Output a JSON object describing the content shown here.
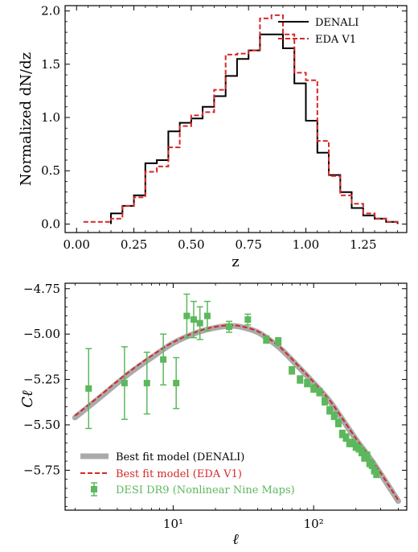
{
  "chart_data": [
    {
      "type": "line",
      "subtype": "step",
      "xlabel": "z",
      "ylabel": "Normalized dN/dz",
      "xlim": [
        -0.05,
        1.44
      ],
      "ylim": [
        -0.08,
        2.05
      ],
      "xticks": [
        0.0,
        0.25,
        0.5,
        0.75,
        1.0,
        1.25
      ],
      "xtick_labels": [
        "0.00",
        "0.25",
        "0.50",
        "0.75",
        "1.00",
        "1.25"
      ],
      "yticks": [
        0.0,
        0.5,
        1.0,
        1.5,
        2.0
      ],
      "ytick_labels": [
        "0.0",
        "0.5",
        "1.0",
        "1.5",
        "2.0"
      ],
      "grid": false,
      "legend_position": "top-right",
      "bin_edges": [
        0.15,
        0.2,
        0.25,
        0.3,
        0.35,
        0.4,
        0.45,
        0.5,
        0.55,
        0.6,
        0.65,
        0.7,
        0.75,
        0.8,
        0.85,
        0.9,
        0.95,
        1.0,
        1.05,
        1.1,
        1.15,
        1.2,
        1.25,
        1.3,
        1.35,
        1.4
      ],
      "series": [
        {
          "name": "DENALI",
          "color": "#000000",
          "style": "solid",
          "values": [
            0.1,
            0.17,
            0.27,
            0.57,
            0.6,
            0.87,
            0.95,
            0.99,
            1.1,
            1.2,
            1.39,
            1.55,
            1.63,
            1.78,
            1.78,
            1.65,
            1.32,
            0.97,
            0.67,
            0.46,
            0.3,
            0.15,
            0.08,
            0.05,
            0.02
          ]
        },
        {
          "name": "EDA V1",
          "color": "#d62728",
          "style": "dashed",
          "x_start": 0.03,
          "leading_value": 0.02,
          "values": [
            0.05,
            0.17,
            0.25,
            0.49,
            0.54,
            0.72,
            0.92,
            1.02,
            1.05,
            1.26,
            1.59,
            1.6,
            1.63,
            1.93,
            1.96,
            1.78,
            1.42,
            1.35,
            0.78,
            0.45,
            0.27,
            0.19,
            0.1,
            0.05,
            0.02
          ]
        }
      ]
    },
    {
      "type": "line",
      "xlabel": "ℓ",
      "ylabel": "Cℓ",
      "x_scale": "log",
      "xlim": [
        1.7,
        460
      ],
      "ylim": [
        -5.97,
        -4.72
      ],
      "xticks": [
        10,
        100
      ],
      "xtick_labels": [
        "10¹",
        "10²"
      ],
      "yticks": [
        -5.75,
        -5.5,
        -5.25,
        -5.0,
        -4.75
      ],
      "ytick_labels": [
        "−5.75",
        "−5.50",
        "−5.25",
        "−5.00",
        "−4.75"
      ],
      "grid": false,
      "legend_position": "bottom-left",
      "series": [
        {
          "name": "Best fit model (DENALI)",
          "color": "#aaaaaa",
          "style": "thick-solid",
          "x": [
            2,
            3,
            4,
            5,
            7,
            10,
            15,
            20,
            25,
            30,
            40,
            50,
            60,
            80,
            100,
            130,
            160,
            200,
            250,
            300,
            400
          ],
          "y": [
            -5.46,
            -5.35,
            -5.27,
            -5.21,
            -5.13,
            -5.05,
            -4.99,
            -4.965,
            -4.955,
            -4.96,
            -4.99,
            -5.04,
            -5.09,
            -5.19,
            -5.27,
            -5.37,
            -5.47,
            -5.58,
            -5.68,
            -5.77,
            -5.92
          ]
        },
        {
          "name": "Best fit model (EDA V1)",
          "color": "#d62728",
          "style": "dashed",
          "x": [
            2,
            3,
            4,
            5,
            7,
            10,
            15,
            20,
            25,
            30,
            40,
            50,
            60,
            80,
            100,
            130,
            160,
            200,
            250,
            300,
            400
          ],
          "y": [
            -5.45,
            -5.34,
            -5.26,
            -5.2,
            -5.12,
            -5.045,
            -4.985,
            -4.96,
            -4.952,
            -4.956,
            -4.985,
            -5.035,
            -5.085,
            -5.185,
            -5.265,
            -5.365,
            -5.465,
            -5.575,
            -5.675,
            -5.765,
            -5.915
          ]
        },
        {
          "name": "DESI DR9 (Nonlinear Nine Maps)",
          "color": "#5cb85c",
          "style": "errorbar-square",
          "x": [
            2.5,
            4.5,
            6.5,
            8.5,
            10.5,
            12.5,
            14,
            15.5,
            17.5,
            25,
            34,
            46,
            56,
            70,
            80,
            90,
            100,
            110,
            120,
            130,
            140,
            150,
            160,
            170,
            180,
            190,
            200,
            210,
            220,
            230,
            240,
            250,
            260,
            270,
            280
          ],
          "y": [
            -5.3,
            -5.27,
            -5.27,
            -5.14,
            -5.27,
            -4.9,
            -4.92,
            -4.94,
            -4.9,
            -4.96,
            -4.92,
            -5.03,
            -5.04,
            -5.2,
            -5.25,
            -5.27,
            -5.3,
            -5.32,
            -5.37,
            -5.42,
            -5.45,
            -5.49,
            -5.55,
            -5.57,
            -5.6,
            -5.6,
            -5.62,
            -5.63,
            -5.65,
            -5.68,
            -5.67,
            -5.71,
            -5.72,
            -5.75,
            -5.77
          ],
          "err": [
            0.22,
            0.2,
            0.17,
            0.14,
            0.14,
            0.12,
            0.1,
            0.09,
            0.08,
            0.03,
            0.03,
            0.02,
            0.02,
            0.02,
            0.02,
            0.02,
            0.02,
            0.02,
            0.02,
            0.02,
            0.02,
            0.02,
            0.02,
            0.02,
            0.02,
            0.02,
            0.02,
            0.02,
            0.02,
            0.02,
            0.02,
            0.02,
            0.02,
            0.02,
            0.02
          ]
        }
      ]
    }
  ]
}
